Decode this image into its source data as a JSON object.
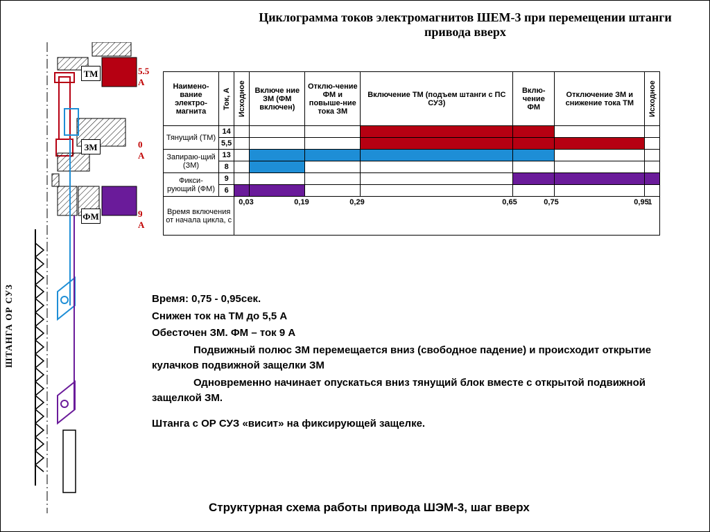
{
  "title": "Циклограмма токов электромагнитов ШЕМ-3 при перемещении штанги привода вверх",
  "vert_label": "ШТАНГА  ОР  СУЗ",
  "magnets": {
    "tm": {
      "label": "ТМ",
      "amp": "5.5 А",
      "color": "#b60012"
    },
    "zm": {
      "label": "ЗМ",
      "amp": "0 А",
      "color": "#1e8ed6"
    },
    "fm": {
      "label": "ФМ",
      "amp": "9 А",
      "color": "#6a1b9a"
    }
  },
  "table": {
    "head": {
      "name": "Наимено-вание электро-магнита",
      "tok": "Ток, А",
      "initial": "Исходное",
      "col1": "Включе ние ЗМ (ФМ включен)",
      "col2": "Отклю-чение ФМ и повыше-ние тока ЗМ",
      "col3": "Включение ТМ (подъем штанги с ПС СУЗ)",
      "col4": "Вклю-чение ФМ",
      "col5": "Отключение ЗМ и снижение тока ТМ",
      "final": "Исходное"
    },
    "rows": [
      {
        "name": "Тянущий (ТМ)",
        "v1": "14",
        "v2": "5,5",
        "fill": {
          "r1": [
            3,
            4
          ],
          "r2": [
            3,
            4,
            5
          ]
        },
        "color": "#b60012"
      },
      {
        "name": "Запираю-щий (ЗМ)",
        "v1": "13",
        "v2": "8",
        "fill": {
          "r1": [
            1,
            2,
            3,
            4
          ],
          "r2": [
            1
          ]
        },
        "color": "#1e8ed6"
      },
      {
        "name": "Фикси-рующий (ФМ)",
        "v1": "9",
        "v2": "6",
        "fill": {
          "r1": [
            4,
            5,
            6
          ],
          "r2": [
            0,
            1
          ]
        },
        "color": "#6a1b9a"
      }
    ],
    "time_label": "Время включения от начала цикла, с",
    "time_marks": [
      "0,03",
      "0,19",
      "0,29",
      "0,65",
      "0,75",
      "0,95",
      "1"
    ],
    "col_widths": {
      "c0": 20,
      "c1": 80,
      "c2": 80,
      "c3": 220,
      "c4": 60,
      "c5": 130,
      "c6": 20
    }
  },
  "desc": {
    "l1": "Время:  0,75  - 0,95сек.",
    "l2": "Снижен  ток на ТМ до 5,5 А",
    "l3": "Обесточен  ЗМ.  ФМ – ток  9 А",
    "l4": "Подвижный полюс ЗМ перемещается вниз (свободное падение) и происходит открытие кулачков  подвижной защелки ЗМ",
    "l5": "Одновременно начинает опускаться вниз тянущий блок вместе с открытой подвижной защелкой  ЗМ.",
    "l6": "Штанга с ОР СУЗ  «висит» на  фиксирующей  защелке."
  },
  "footer": "Структурная схема работы привода ШЭМ-3, шаг вверх",
  "diagram_colors": {
    "tm_outline": "#b60012",
    "zm_outline": "#1e8ed6",
    "fm_outline": "#6a1b9a"
  }
}
